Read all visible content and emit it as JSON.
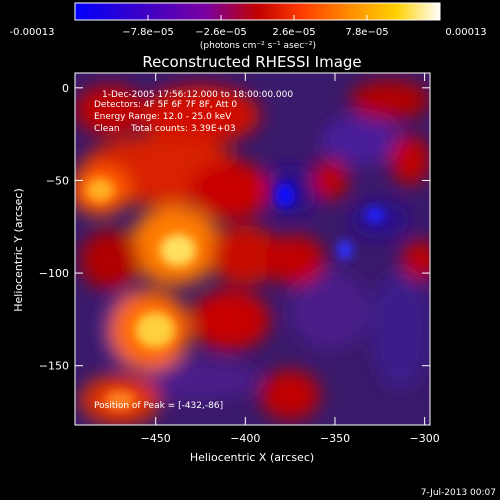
{
  "colorbar": {
    "tick_labels": [
      "-0.00013",
      "−7.8e−05",
      "−2.6e−05",
      "2.6e−05",
      "7.8e−05",
      "0.00013"
    ],
    "tick_values": [
      -0.00013,
      -7.8e-05,
      -2.6e-05,
      2.6e-05,
      7.8e-05,
      0.00013
    ],
    "units_label": "(photons cm⁻² s⁻¹ asec⁻²)",
    "range": [
      -0.00013,
      0.00013
    ],
    "colormap": "RHESSI 'Rainbow-like' (blue→purple→red→orange→yellow→white)",
    "colors": [
      "#0000ff",
      "#3a00c8",
      "#7a00a0",
      "#c00000",
      "#ff3b00",
      "#ff8c00",
      "#ffd000",
      "#ffffff"
    ]
  },
  "chart_data": {
    "type": "heatmap",
    "title": "Reconstructed RHESSI Image",
    "xlabel": "Heliocentric X (arcsec)",
    "ylabel": "Heliocentric Y (arcsec)",
    "xlim": [
      -495,
      -297
    ],
    "ylim": [
      -182,
      8
    ],
    "x_ticks": [
      -450,
      -400,
      -350,
      -300
    ],
    "x_tick_labels": [
      "−450",
      "−400",
      "−350",
      "−300"
    ],
    "y_ticks": [
      0,
      -50,
      -100,
      -150
    ],
    "y_tick_labels": [
      "0",
      "−50",
      "−100",
      "−150"
    ],
    "annotations": [
      "1-Dec-2005 17:56:12.000 to 18:00:00.000",
      "Detectors: 4F 5F 6F 7F 8F, Att 0",
      "Energy Range: 12.0 - 25.0 keV",
      "Clean    Total counts: 3.39E+03"
    ],
    "peak_label": "Position of Peak = [-432,-86]",
    "peak_position": [
      -432,
      -86
    ],
    "timestamp": "7-Jul-2013 00:07"
  }
}
